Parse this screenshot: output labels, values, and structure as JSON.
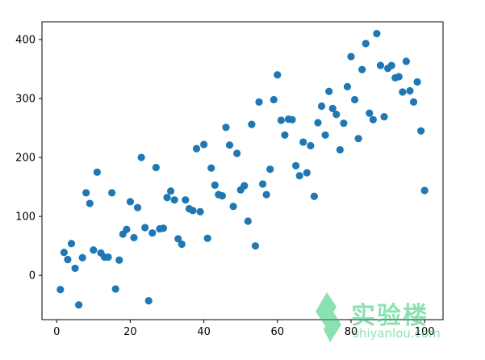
{
  "colors": {
    "point": "#1f77b4",
    "axis": "#000000",
    "background": "#ffffff",
    "watermark": "#2ecc71"
  },
  "watermark": {
    "brand": "实验楼",
    "url": "shiyanlou.com",
    "icon": "shiyanlou-logo-icon"
  },
  "chart_data": {
    "type": "scatter",
    "title": "",
    "xlabel": "",
    "ylabel": "",
    "xlim": [
      -4,
      105
    ],
    "ylim": [
      -75,
      430
    ],
    "grid": false,
    "xticks": [
      0,
      20,
      40,
      60,
      80,
      100
    ],
    "yticks": [
      0,
      100,
      200,
      300,
      400
    ],
    "series": [
      {
        "x": [
          1,
          2,
          3,
          4,
          5,
          6,
          7,
          8,
          9,
          10,
          11,
          12,
          13,
          14,
          15,
          16,
          17,
          18,
          19,
          20,
          21,
          22,
          23,
          24,
          25,
          26,
          27,
          28,
          29,
          30,
          31,
          32,
          33,
          34,
          35,
          36,
          37,
          38,
          39,
          40,
          41,
          42,
          43,
          44,
          45,
          46,
          47,
          48,
          49,
          50,
          51,
          52,
          53,
          54,
          55,
          56,
          57,
          58,
          59,
          60,
          61,
          62,
          63,
          64,
          65,
          66,
          67,
          68,
          69,
          70,
          71,
          72,
          73,
          74,
          75,
          76,
          77,
          78,
          79,
          80,
          81,
          82,
          83,
          84,
          85,
          86,
          87,
          88,
          89,
          90,
          91,
          92,
          93,
          94,
          95,
          96,
          97,
          98,
          99,
          100
        ],
        "y": [
          -24,
          39,
          27,
          54,
          12,
          -50,
          30,
          140,
          122,
          43,
          175,
          38,
          31,
          31,
          140,
          -23,
          26,
          70,
          78,
          125,
          64,
          115,
          200,
          81,
          -43,
          72,
          183,
          79,
          80,
          132,
          143,
          128,
          62,
          53,
          128,
          113,
          110,
          215,
          108,
          222,
          63,
          182,
          153,
          137,
          135,
          251,
          221,
          117,
          207,
          145,
          152,
          92,
          256,
          50,
          294,
          155,
          137,
          180,
          298,
          340,
          263,
          238,
          265,
          264,
          186,
          169,
          226,
          174,
          220,
          134,
          259,
          287,
          238,
          312,
          283,
          273,
          213,
          258,
          320,
          371,
          298,
          232,
          349,
          393,
          275,
          264,
          410,
          356,
          269,
          351,
          356,
          335,
          337,
          311,
          363,
          313,
          294,
          328,
          245,
          144
        ]
      }
    ]
  }
}
